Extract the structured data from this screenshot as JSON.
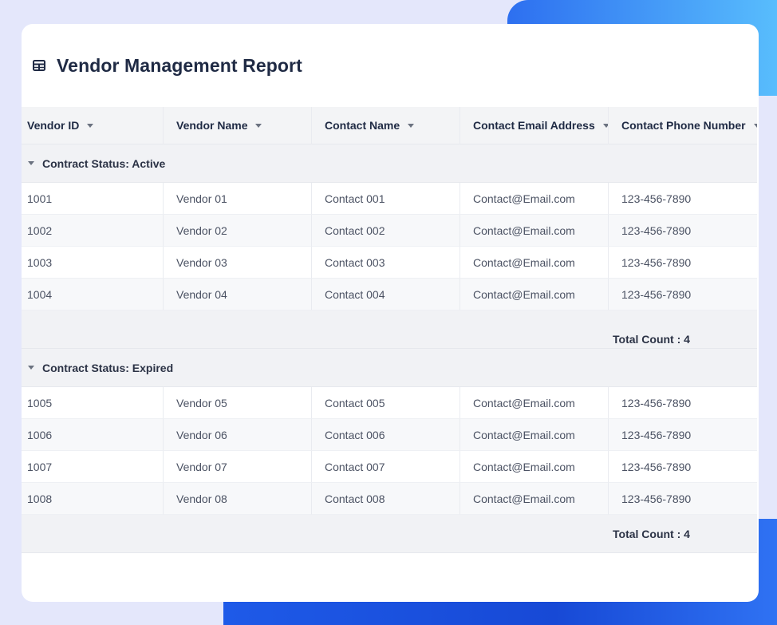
{
  "report": {
    "title": "Vendor Management Report",
    "title_icon": "table-icon"
  },
  "columns": [
    {
      "label": "Vendor ID"
    },
    {
      "label": "Vendor Name"
    },
    {
      "label": "Contact Name"
    },
    {
      "label": "Contact Email Address"
    },
    {
      "label": "Contact Phone Number"
    }
  ],
  "groups": [
    {
      "label": "Contract Status: Active",
      "rows": [
        [
          "1001",
          "Vendor 01",
          "Contact 001",
          "Contact@Email.com",
          "123-456-7890"
        ],
        [
          "1002",
          "Vendor 02",
          "Contact 002",
          "Contact@Email.com",
          "123-456-7890"
        ],
        [
          "1003",
          "Vendor 03",
          "Contact 003",
          "Contact@Email.com",
          "123-456-7890"
        ],
        [
          "1004",
          "Vendor 04",
          "Contact 004",
          "Contact@Email.com",
          "123-456-7890"
        ]
      ],
      "total": "Total Count : 4"
    },
    {
      "label": "Contract Status: Expired",
      "rows": [
        [
          "1005",
          "Vendor 05",
          "Contact 005",
          "Contact@Email.com",
          "123-456-7890"
        ],
        [
          "1006",
          "Vendor 06",
          "Contact 006",
          "Contact@Email.com",
          "123-456-7890"
        ],
        [
          "1007",
          "Vendor 07",
          "Contact 007",
          "Contact@Email.com",
          "123-456-7890"
        ],
        [
          "1008",
          "Vendor 08",
          "Contact 008",
          "Contact@Email.com",
          "123-456-7890"
        ]
      ],
      "total": "Total Count : 4"
    }
  ]
}
